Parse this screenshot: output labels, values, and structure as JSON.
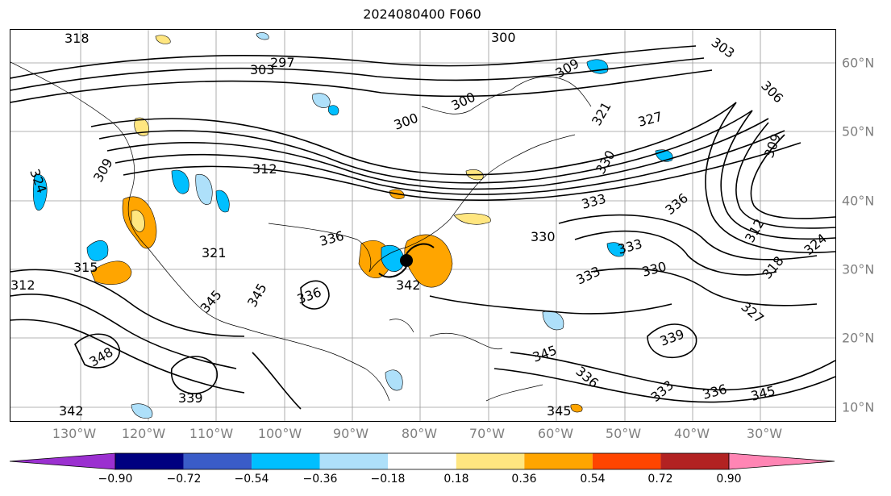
{
  "title": "2024080400 F060",
  "map": {
    "lon_labels": [
      "130°W",
      "120°W",
      "110°W",
      "100°W",
      "90°W",
      "80°W",
      "70°W",
      "60°W",
      "50°W",
      "40°W",
      "30°W"
    ],
    "lat_labels": [
      "60°N",
      "50°N",
      "40°N",
      "30°N",
      "20°N",
      "10°N"
    ],
    "contour_labels": [
      "318",
      "297",
      "303",
      "300",
      "300",
      "300",
      "303",
      "306",
      "309",
      "321",
      "327",
      "309",
      "312",
      "330",
      "333",
      "336",
      "330",
      "333",
      "333",
      "330",
      "312",
      "318",
      "324",
      "327",
      "336",
      "339",
      "345",
      "342",
      "345",
      "345",
      "348",
      "339",
      "336",
      "342",
      "345",
      "336",
      "333",
      "336",
      "345",
      "315",
      "312",
      "321",
      "324",
      "309"
    ]
  },
  "colorbar": {
    "ticks": [
      "−0.90",
      "−0.72",
      "−0.54",
      "−0.36",
      "−0.18",
      "0.18",
      "0.36",
      "0.54",
      "0.72",
      "0.90"
    ],
    "colors": [
      "#9b30d0",
      "#000080",
      "#3a5cc8",
      "#00bfff",
      "#aee0fa",
      "#ffffff",
      "#ffe680",
      "#ffa500",
      "#ff4500",
      "#b22222",
      "#ff85b4"
    ]
  }
}
